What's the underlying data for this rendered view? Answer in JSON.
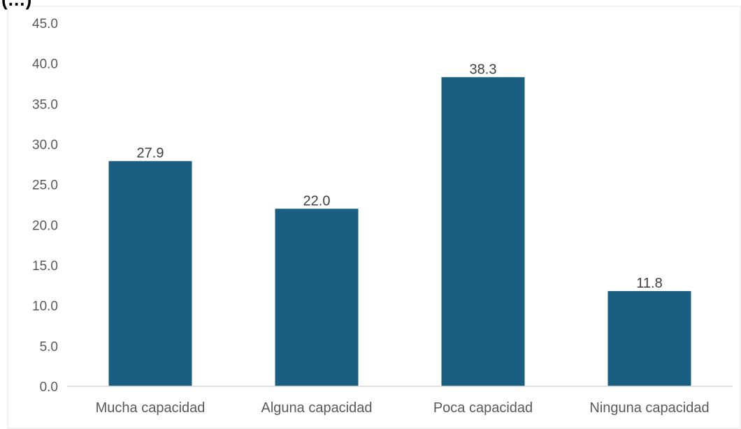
{
  "header": {
    "title_fragment": "(…)"
  },
  "chart_data": {
    "type": "bar",
    "categories": [
      "Mucha capacidad",
      "Alguna capacidad",
      "Poca capacidad",
      "Ninguna capacidad"
    ],
    "values": [
      27.9,
      22.0,
      38.3,
      11.8
    ],
    "data_labels": [
      "27.9",
      "22.0",
      "38.3",
      "11.8"
    ],
    "y_ticks": [
      "0.0",
      "5.0",
      "10.0",
      "15.0",
      "20.0",
      "25.0",
      "30.0",
      "35.0",
      "40.0",
      "45.0"
    ],
    "ylim": [
      0,
      45
    ],
    "grid": false,
    "legend": "none",
    "bar_color": "#1a5e82",
    "axis_color": "#d9d9d9",
    "border_color": "#e4e4e4"
  }
}
